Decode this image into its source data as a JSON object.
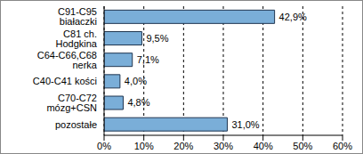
{
  "chart_data": {
    "type": "bar",
    "orientation": "horizontal",
    "categories": [
      "C91-C95 białaczki",
      "C81 ch. Hodgkina",
      "C64-C66,C68 nerka",
      "C40-C41 kości",
      "C70-C72 mózg+CSN",
      "pozostałe"
    ],
    "values": [
      42.9,
      9.5,
      7.1,
      4.0,
      4.8,
      31.0
    ],
    "value_labels": [
      "42,9%",
      "9,5%",
      "7,1%",
      "4,0%",
      "4,8%",
      "31,0%"
    ],
    "data_labels": true,
    "color": "#7aaed8",
    "xlim": [
      0,
      60
    ],
    "xticks": [
      {
        "value": 0,
        "label": "0%"
      },
      {
        "value": 10,
        "label": "10%"
      },
      {
        "value": 20,
        "label": "20%"
      },
      {
        "value": 30,
        "label": "30%"
      },
      {
        "value": 40,
        "label": "40%"
      },
      {
        "value": 50,
        "label": "50%"
      },
      {
        "value": 60,
        "label": "60%"
      }
    ],
    "grid": true
  }
}
